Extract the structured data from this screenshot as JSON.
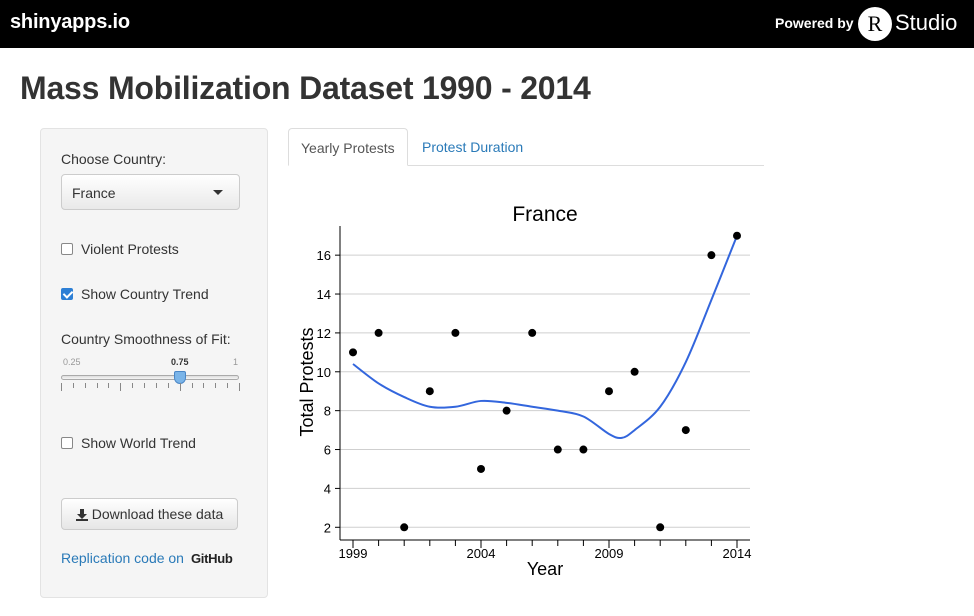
{
  "topbar": {
    "brand": "shinyapps.io",
    "powered_by": "Powered by",
    "r_logo": "R",
    "studio": "Studio",
    "bg": "#000000"
  },
  "page": {
    "title": "Mass Mobilization Dataset 1990 - 2014"
  },
  "sidebar": {
    "country_label": "Choose Country:",
    "country_value": "France",
    "violent_label": "Violent Protests",
    "violent_checked": false,
    "trend_label": "Show Country Trend",
    "trend_checked": true,
    "smooth_label": "Country Smoothness of Fit:",
    "slider": {
      "min": "0.25",
      "max": "1",
      "value": "0.75",
      "fraction": 0.6667
    },
    "world_label": "Show World Trend",
    "world_checked": false,
    "download_label": "Download these data",
    "download_icon": "download-icon",
    "replication_text": "Replication code on",
    "github_text": "GitHub"
  },
  "tabs": [
    {
      "label": "Yearly Protests",
      "active": true
    },
    {
      "label": "Protest Duration",
      "active": false
    }
  ],
  "chart_data": {
    "type": "scatter",
    "title": "France",
    "xlabel": "Year",
    "ylabel": "Total Protests",
    "xlim": [
      1999,
      2014
    ],
    "ylim": [
      1.5,
      17.5
    ],
    "xticks": [
      1999,
      2004,
      2009,
      2014
    ],
    "yticks": [
      2,
      4,
      6,
      8,
      10,
      12,
      14,
      16
    ],
    "grid": "horizontal",
    "points": {
      "x": [
        1999,
        2000,
        2001,
        2002,
        2003,
        2004,
        2005,
        2006,
        2007,
        2008,
        2009,
        2010,
        2011,
        2012,
        2013,
        2014
      ],
      "y": [
        11,
        12,
        2,
        9,
        12,
        5,
        8,
        12,
        6,
        6,
        9,
        10,
        2,
        7,
        16,
        17
      ]
    },
    "trend": {
      "x": [
        1999,
        2000,
        2001,
        2002,
        2003,
        2004,
        2005,
        2006,
        2007,
        2008,
        2009,
        2009.5,
        2010,
        2011,
        2012,
        2013,
        2014
      ],
      "y": [
        10.4,
        9.4,
        8.7,
        8.2,
        8.2,
        8.5,
        8.4,
        8.2,
        8.0,
        7.7,
        6.8,
        6.6,
        7.0,
        8.2,
        10.5,
        13.7,
        17.0
      ],
      "color": "#3366dd"
    }
  }
}
